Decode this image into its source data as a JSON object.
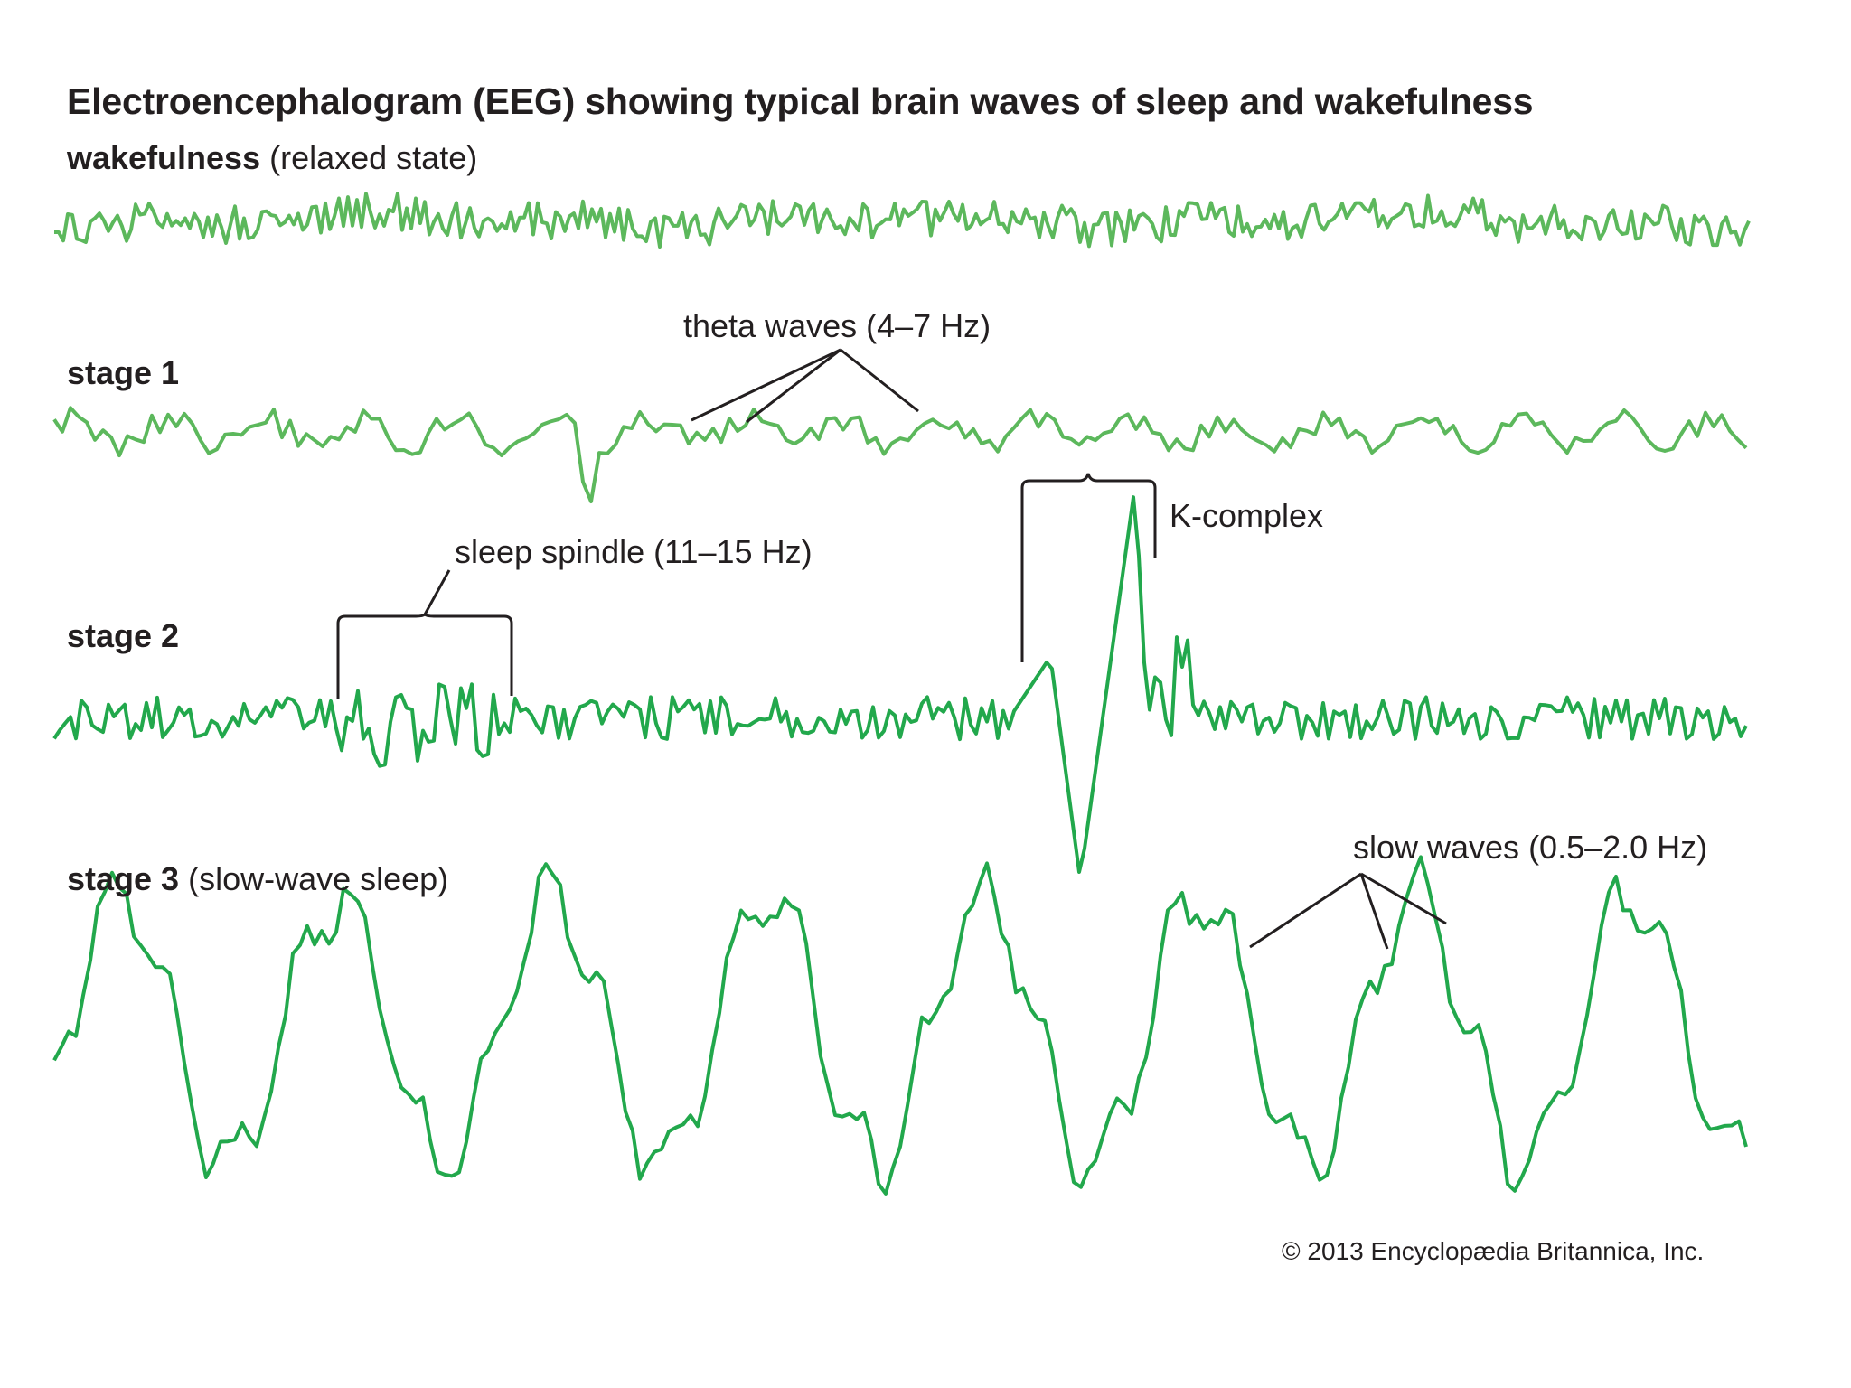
{
  "title": "Electroencephalogram (EEG) showing typical brain waves of sleep and wakefulness",
  "colors": {
    "wave": "#5cb85c",
    "wave_dark": "#22a84c",
    "bracket": "#231f20",
    "text": "#231f20"
  },
  "rows": [
    {
      "id": "wakefulness",
      "label_bold": "wakefulness",
      "label_extra": " (relaxed state)"
    },
    {
      "id": "stage1",
      "label_bold": "stage 1",
      "label_extra": ""
    },
    {
      "id": "stage2",
      "label_bold": "stage 2",
      "label_extra": ""
    },
    {
      "id": "stage3",
      "label_bold": "stage 3",
      "label_extra": " (slow-wave sleep)"
    }
  ],
  "annotations": {
    "theta": "theta waves (4–7 Hz)",
    "spindle": "sleep spindle (11–15 Hz)",
    "kcomplex": "K-complex",
    "slow": "slow waves (0.5–2.0 Hz)"
  },
  "credit": "© 2013 Encyclopædia Britannica, Inc."
}
